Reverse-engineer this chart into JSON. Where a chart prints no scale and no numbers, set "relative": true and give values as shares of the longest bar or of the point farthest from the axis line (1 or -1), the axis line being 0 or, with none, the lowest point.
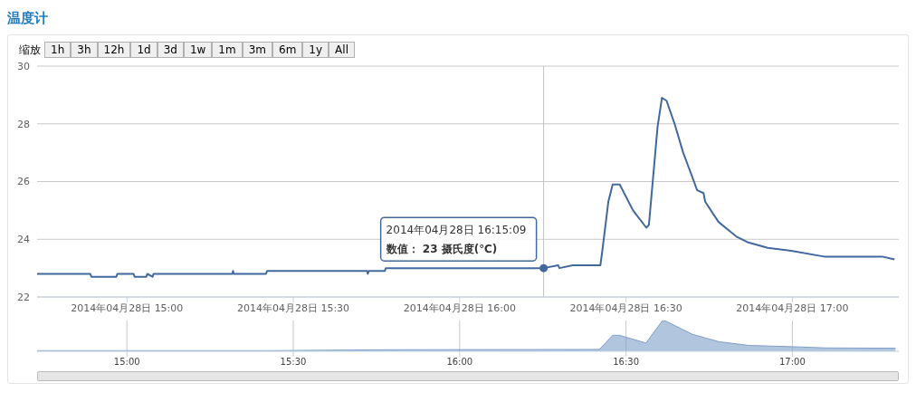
{
  "chart_data": [
    {
      "type": "line",
      "title": "温度计",
      "annotations": [
        "缩放",
        "1h",
        "3h",
        "12h",
        "1d",
        "3d",
        "1w",
        "1m",
        "3m",
        "6m",
        "1y",
        "All",
        {
          "text": "2014年04月28日 16:15:09\n数值： 23 摄氏度(℃)",
          "x": "2014-04-28T16:15:09",
          "y": 23
        }
      ],
      "x": [
        "2014-04-28T14:43:48",
        "2014-04-28T14:53:24",
        "2014-04-28T14:53:35",
        "2014-04-28T14:58:05",
        "2014-04-28T14:58:16",
        "2014-04-28T15:01:12",
        "2014-04-28T15:01:23",
        "2014-04-28T15:03:29",
        "2014-04-28T15:03:40",
        "2014-04-28T15:04:37",
        "2014-04-28T15:04:48",
        "2014-04-28T15:19:01",
        "2014-04-28T15:19:08",
        "2014-04-28T15:19:16",
        "2014-04-28T15:25:05",
        "2014-04-28T15:25:16",
        "2014-04-28T15:43:19",
        "2014-04-28T15:43:26",
        "2014-04-28T15:43:37",
        "2014-04-28T15:46:30",
        "2014-04-28T15:46:41",
        "2014-04-28T16:15:09",
        "2014-04-28T16:17:46",
        "2014-04-28T16:18:00",
        "2014-04-28T16:20:24",
        "2014-04-28T16:25:23",
        "2014-04-28T16:25:44",
        "2014-04-28T16:26:49",
        "2014-04-28T16:27:36",
        "2014-04-28T16:28:52",
        "2014-04-28T16:31:16",
        "2014-04-28T16:33:40",
        "2014-04-28T16:34:08",
        "2014-04-28T16:35:42",
        "2014-04-28T16:36:29",
        "2014-04-28T16:37:19",
        "2014-04-28T16:38:46",
        "2014-04-28T16:40:19",
        "2014-04-28T16:42:04",
        "2014-04-28T16:42:50",
        "2014-04-28T16:43:59",
        "2014-04-28T16:44:17",
        "2014-04-28T16:46:41",
        "2014-04-28T16:49:52",
        "2014-04-28T16:51:54",
        "2014-04-28T16:55:34",
        "2014-04-28T16:59:49",
        "2014-04-28T17:05:42",
        "2014-04-28T17:16:12",
        "2014-04-28T17:18:25"
      ],
      "series": [
        {
          "color": "#41699e",
          "values": [
            22.8,
            22.8,
            22.7,
            22.7,
            22.8,
            22.8,
            22.7,
            22.7,
            22.8,
            22.7,
            22.8,
            22.8,
            22.9,
            22.8,
            22.8,
            22.9,
            22.9,
            22.8,
            22.9,
            22.9,
            23.0,
            23.0,
            23.1,
            23.0,
            23.1,
            23.1,
            23.6,
            25.3,
            25.9,
            25.9,
            25.0,
            24.4,
            24.5,
            27.9,
            28.9,
            28.8,
            28.0,
            27.0,
            26.1,
            25.7,
            25.6,
            25.3,
            24.6,
            24.1,
            23.9,
            23.7,
            23.6,
            23.4,
            23.4,
            23.3
          ]
        }
      ],
      "xlim": [
        "2014-04-28T14:43:48",
        "2014-04-28T17:19:12"
      ],
      "xticks": [
        {
          "value": "2014-04-28T15:00",
          "label": "2014年04月28日 15:00"
        },
        {
          "value": "2014-04-28T15:30",
          "label": "2014年04月28日 15:30"
        },
        {
          "value": "2014-04-28T16:00",
          "label": "2014年04月28日 16:00"
        },
        {
          "value": "2014-04-28T16:30",
          "label": "2014年04月28日 16:30"
        },
        {
          "value": "2014-04-28T17:00",
          "label": "2014年04月28日 17:00"
        }
      ],
      "ylim": [
        22,
        30
      ],
      "yticks": [
        22,
        24,
        26,
        28,
        30
      ],
      "grid": "y",
      "legend": false,
      "marker": "none",
      "ref_lines": [
        {
          "axis": "x",
          "value": "2014-04-28T16:15:09",
          "color": "#c0c0c0"
        }
      ]
    },
    {
      "type": "area",
      "relative": true,
      "x": [
        "2014-04-28T14:43:48",
        "2014-04-28T15:25:12",
        "2014-04-28T15:46:48",
        "2014-04-28T16:25:12",
        "2014-04-28T16:27:36",
        "2014-04-28T16:28:48",
        "2014-04-28T16:33:36",
        "2014-04-28T16:36:36",
        "2014-04-28T16:37:12",
        "2014-04-28T16:42:00",
        "2014-04-28T16:46:48",
        "2014-04-28T16:52:12",
        "2014-04-28T17:00:00",
        "2014-04-28T17:06:00",
        "2014-04-28T17:18:36"
      ],
      "series": [
        {
          "color": "#7f9fca",
          "values": [
            0.02,
            0.02,
            0.05,
            0.06,
            0.52,
            0.52,
            0.27,
            1,
            0.98,
            0.55,
            0.31,
            0.19,
            0.15,
            0.11,
            0.1
          ]
        }
      ],
      "xlim": [
        "2014-04-28T14:43:48",
        "2014-04-28T17:19:12"
      ],
      "xticks": [
        {
          "value": "2014-04-28T15:00",
          "label": "15:00"
        },
        {
          "value": "2014-04-28T15:30",
          "label": "15:30"
        },
        {
          "value": "2014-04-28T16:00",
          "label": "16:00"
        },
        {
          "value": "2014-04-28T16:30",
          "label": "16:30"
        },
        {
          "value": "2014-04-28T17:00",
          "label": "17:00"
        }
      ],
      "grid": "x",
      "legend": false
    }
  ]
}
